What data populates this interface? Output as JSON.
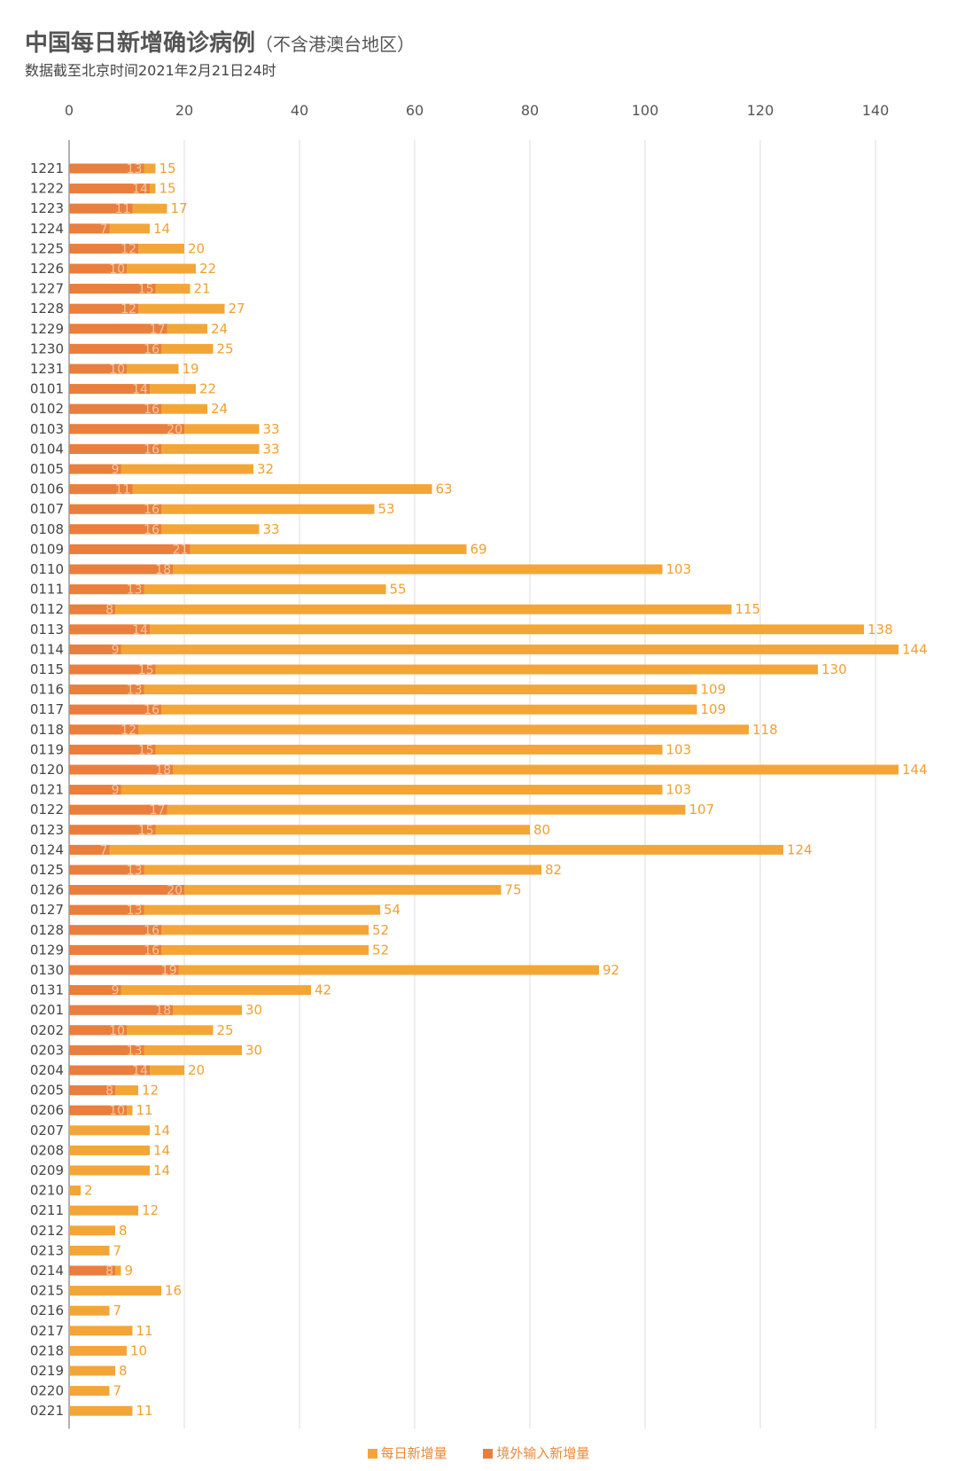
{
  "title": {
    "main": "中国每日新增确诊病例",
    "sub": "（不含港澳台地区）"
  },
  "subtitle": "数据截至北京时间2021年2月21日24时",
  "colors": {
    "total": "#f3a637",
    "imported": "#ea7e3d",
    "grid": "#dddddd",
    "axis": "#999999"
  },
  "legend": {
    "total": "每日新增量",
    "imported": "境外输入新增量"
  },
  "chart_data": {
    "type": "bar",
    "orientation": "horizontal",
    "title": "中国每日新增确诊病例（不含港澳台地区）",
    "xlim": [
      0,
      150
    ],
    "xticks": [
      "0",
      "20",
      "40",
      "60",
      "80",
      "100",
      "120",
      "140"
    ],
    "categories": [
      "1221",
      "1222",
      "1223",
      "1224",
      "1225",
      "1226",
      "1227",
      "1228",
      "1229",
      "1230",
      "1231",
      "0101",
      "0102",
      "0103",
      "0104",
      "0105",
      "0106",
      "0107",
      "0108",
      "0109",
      "0110",
      "0111",
      "0112",
      "0113",
      "0114",
      "0115",
      "0116",
      "0117",
      "0118",
      "0119",
      "0120",
      "0121",
      "0122",
      "0123",
      "0124",
      "0125",
      "0126",
      "0127",
      "0128",
      "0129",
      "0130",
      "0131",
      "0201",
      "0202",
      "0203",
      "0204",
      "0205",
      "0206",
      "0207",
      "0208",
      "0209",
      "0210",
      "0211",
      "0212",
      "0213",
      "0214",
      "0215",
      "0216",
      "0217",
      "0218",
      "0219",
      "0220",
      "0221"
    ],
    "series": [
      {
        "name": "每日新增量",
        "values": [
          15,
          15,
          17,
          14,
          20,
          22,
          21,
          27,
          24,
          25,
          19,
          22,
          24,
          33,
          33,
          32,
          63,
          53,
          33,
          69,
          103,
          55,
          115,
          138,
          144,
          130,
          109,
          109,
          118,
          103,
          144,
          103,
          107,
          80,
          124,
          82,
          75,
          54,
          52,
          52,
          92,
          42,
          30,
          25,
          30,
          20,
          12,
          11,
          14,
          14,
          14,
          2,
          12,
          8,
          7,
          9,
          16,
          7,
          11,
          10,
          8,
          7,
          11
        ]
      },
      {
        "name": "境外输入新增量",
        "values": [
          13,
          14,
          11,
          7,
          12,
          10,
          15,
          12,
          17,
          16,
          10,
          14,
          16,
          20,
          16,
          9,
          11,
          16,
          16,
          21,
          18,
          13,
          8,
          14,
          9,
          15,
          13,
          16,
          12,
          15,
          18,
          9,
          17,
          15,
          7,
          13,
          20,
          13,
          16,
          16,
          19,
          9,
          18,
          10,
          13,
          14,
          8,
          10,
          0,
          0,
          0,
          0,
          0,
          0,
          0,
          8,
          0,
          0,
          0,
          0,
          0,
          0,
          0
        ]
      }
    ]
  }
}
